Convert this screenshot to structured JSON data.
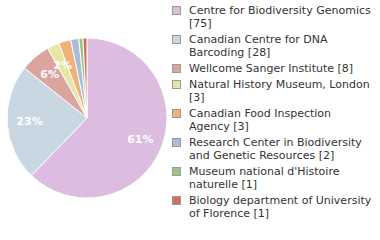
{
  "chart_data": {
    "type": "pie",
    "categories": [
      "Centre for Biodiversity Genomics [75]",
      "Canadian Centre for DNA Barcoding [28]",
      "Wellcome Sanger Institute [8]",
      "Natural History Museum, London [3]",
      "Canadian Food Inspection Agency [3]",
      "Research Center in Biodiversity and Genetic Resources [2]",
      "Museum national d'Histoire naturelle [1]",
      "Biology department of University of Florence [1]"
    ],
    "values": [
      61,
      23,
      6,
      2.4,
      2.4,
      1.6,
      0.8,
      0.8
    ],
    "value_labels": [
      "61%",
      "23%",
      "6%",
      "2%",
      null,
      null,
      null,
      null
    ],
    "colors": [
      "#dcbcdf",
      "#c9d7e3",
      "#dba59f",
      "#e6e6a6",
      "#efb27a",
      "#a9bdd9",
      "#9cc284",
      "#d2705e"
    ],
    "data_labels": true,
    "legend": "right"
  }
}
